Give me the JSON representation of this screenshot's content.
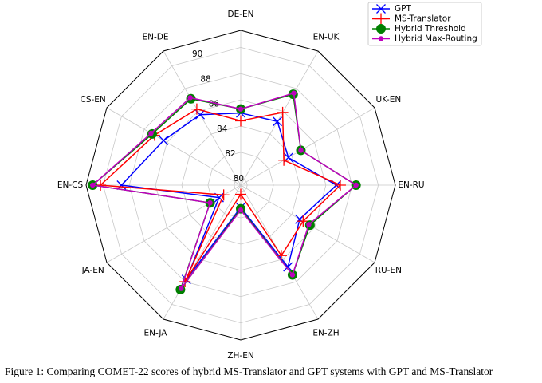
{
  "chart_data": {
    "type": "radar",
    "categories": [
      "DE-EN",
      "EN-UK",
      "UK-EN",
      "EN-RU",
      "RU-EN",
      "EN-ZH",
      "ZH-EN",
      "EN-JA",
      "JA-EN",
      "EN-CS",
      "CS-EN",
      "EN-DE"
    ],
    "series": [
      {
        "name": "GPT",
        "color": "#0000ff",
        "marker": "x",
        "values": [
          85.0,
          85.1,
          83.7,
          86.8,
          84.7,
          86.7,
          81.2,
          87.8,
          81.4,
          88.6,
          86.3,
          85.7
        ]
      },
      {
        "name": "MS-Translator",
        "color": "#ff0000",
        "marker": "+",
        "values": [
          84.4,
          85.9,
          83.3,
          87.1,
          85.0,
          85.7,
          80.2,
          88.0,
          81.0,
          90.2,
          87.1,
          86.2
        ]
      },
      {
        "name": "Hybrid Threshold",
        "color": "#008000",
        "marker": "o",
        "values": [
          85.3,
          87.5,
          84.8,
          88.3,
          85.6,
          87.4,
          81.3,
          88.7,
          82.2,
          90.8,
          87.3,
          87.1
        ]
      },
      {
        "name": "Hybrid Max-Routing",
        "color": "#bf00bf",
        "marker": ".",
        "values": [
          85.3,
          87.6,
          84.8,
          88.3,
          85.5,
          87.4,
          81.4,
          88.6,
          82.2,
          90.8,
          87.4,
          87.2
        ]
      }
    ],
    "rlim": [
      79.5,
      91.3
    ],
    "rticks": [
      80,
      82,
      84,
      86,
      88,
      90
    ],
    "grid": true,
    "legend": "upper right",
    "caption": "Figure 1: Comparing COMET-22 scores of hybrid MS-Translator and GPT systems with GPT and MS-Translator"
  }
}
